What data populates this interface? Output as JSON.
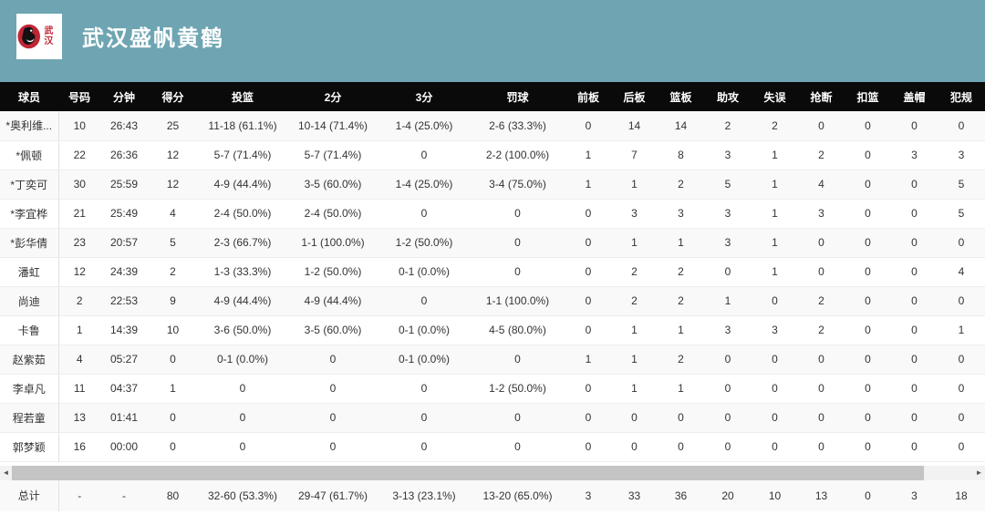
{
  "header": {
    "title": "武汉盛帆黄鹤",
    "logo_text": "武汉",
    "colors": {
      "banner_bg": "#6fa5b2",
      "table_head_bg": "#0a0a0a",
      "logo_red": "#c02536"
    }
  },
  "table": {
    "columns": [
      "球员",
      "号码",
      "分钟",
      "得分",
      "投篮",
      "2分",
      "3分",
      "罚球",
      "前板",
      "后板",
      "篮板",
      "助攻",
      "失误",
      "抢断",
      "扣篮",
      "盖帽",
      "犯规"
    ],
    "rows": [
      [
        "*奥利维...",
        "10",
        "26:43",
        "25",
        "11-18 (61.1%)",
        "10-14 (71.4%)",
        "1-4 (25.0%)",
        "2-6 (33.3%)",
        "0",
        "14",
        "14",
        "2",
        "2",
        "0",
        "0",
        "0",
        "0"
      ],
      [
        "*佩顿",
        "22",
        "26:36",
        "12",
        "5-7 (71.4%)",
        "5-7 (71.4%)",
        "0",
        "2-2 (100.0%)",
        "1",
        "7",
        "8",
        "3",
        "1",
        "2",
        "0",
        "3",
        "3"
      ],
      [
        "*丁奕可",
        "30",
        "25:59",
        "12",
        "4-9 (44.4%)",
        "3-5 (60.0%)",
        "1-4 (25.0%)",
        "3-4 (75.0%)",
        "1",
        "1",
        "2",
        "5",
        "1",
        "4",
        "0",
        "0",
        "5"
      ],
      [
        "*李宜桦",
        "21",
        "25:49",
        "4",
        "2-4 (50.0%)",
        "2-4 (50.0%)",
        "0",
        "0",
        "0",
        "3",
        "3",
        "3",
        "1",
        "3",
        "0",
        "0",
        "5"
      ],
      [
        "*彭华倩",
        "23",
        "20:57",
        "5",
        "2-3 (66.7%)",
        "1-1 (100.0%)",
        "1-2 (50.0%)",
        "0",
        "0",
        "1",
        "1",
        "3",
        "1",
        "0",
        "0",
        "0",
        "0"
      ],
      [
        "潘虹",
        "12",
        "24:39",
        "2",
        "1-3 (33.3%)",
        "1-2 (50.0%)",
        "0-1 (0.0%)",
        "0",
        "0",
        "2",
        "2",
        "0",
        "1",
        "0",
        "0",
        "0",
        "4"
      ],
      [
        "尚迪",
        "2",
        "22:53",
        "9",
        "4-9 (44.4%)",
        "4-9 (44.4%)",
        "0",
        "1-1 (100.0%)",
        "0",
        "2",
        "2",
        "1",
        "0",
        "2",
        "0",
        "0",
        "0"
      ],
      [
        "卡鲁",
        "1",
        "14:39",
        "10",
        "3-6 (50.0%)",
        "3-5 (60.0%)",
        "0-1 (0.0%)",
        "4-5 (80.0%)",
        "0",
        "1",
        "1",
        "3",
        "3",
        "2",
        "0",
        "0",
        "1"
      ],
      [
        "赵紫茹",
        "4",
        "05:27",
        "0",
        "0-1 (0.0%)",
        "0",
        "0-1 (0.0%)",
        "0",
        "1",
        "1",
        "2",
        "0",
        "0",
        "0",
        "0",
        "0",
        "0"
      ],
      [
        "李卓凡",
        "11",
        "04:37",
        "1",
        "0",
        "0",
        "0",
        "1-2 (50.0%)",
        "0",
        "1",
        "1",
        "0",
        "0",
        "0",
        "0",
        "0",
        "0"
      ],
      [
        "程若童",
        "13",
        "01:41",
        "0",
        "0",
        "0",
        "0",
        "0",
        "0",
        "0",
        "0",
        "0",
        "0",
        "0",
        "0",
        "0",
        "0"
      ],
      [
        "郭梦颖",
        "16",
        "00:00",
        "0",
        "0",
        "0",
        "0",
        "0",
        "0",
        "0",
        "0",
        "0",
        "0",
        "0",
        "0",
        "0",
        "0"
      ]
    ],
    "totals": [
      "总计",
      "-",
      "-",
      "80",
      "32-60 (53.3%)",
      "29-47 (61.7%)",
      "3-13 (23.1%)",
      "13-20 (65.0%)",
      "3",
      "33",
      "36",
      "20",
      "10",
      "13",
      "0",
      "3",
      "18"
    ]
  },
  "scrollbar": {
    "left_arrow": "◄",
    "right_arrow": "►"
  }
}
